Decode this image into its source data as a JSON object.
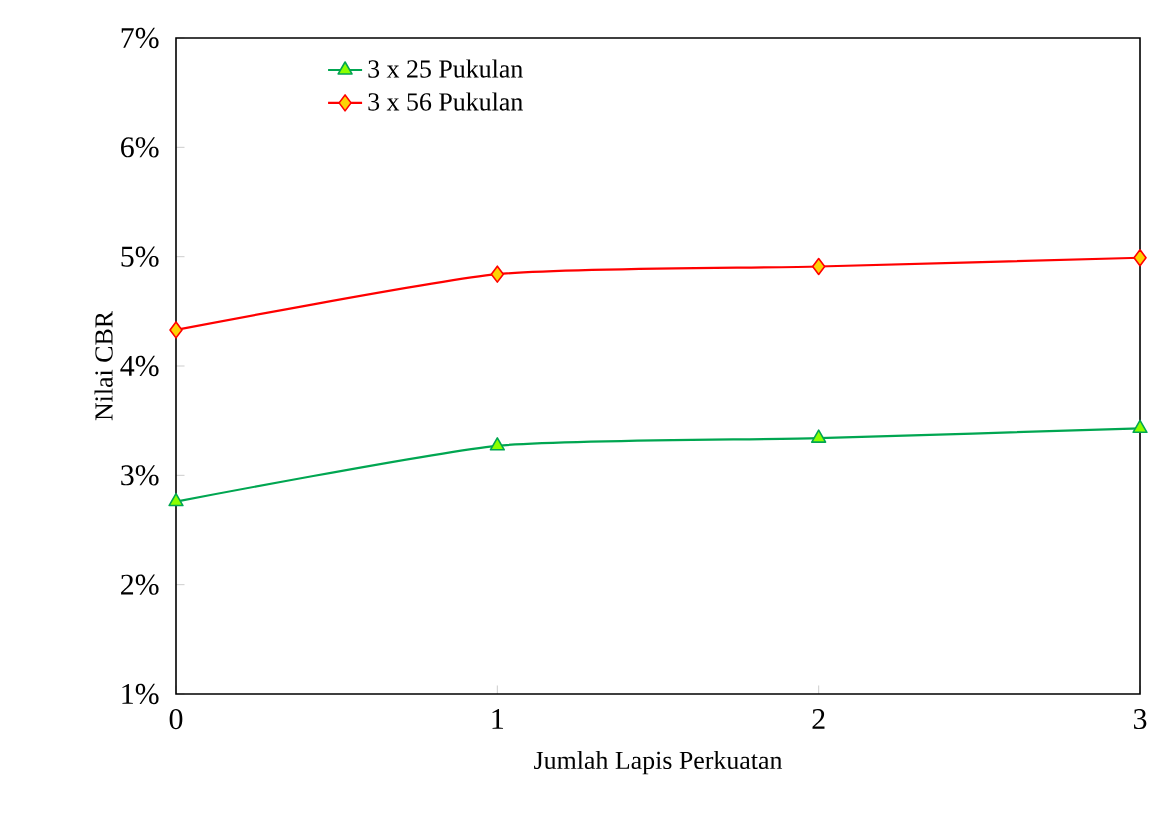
{
  "chart_data": {
    "type": "line",
    "xlabel": "Jumlah Lapis Perkuatan",
    "ylabel": "Nilai CBR",
    "x": [
      0,
      1,
      2,
      3
    ],
    "series": [
      {
        "name": "3 x 25 Pukulan",
        "color": "#00a651",
        "marker": "triangle",
        "values": [
          2.76,
          3.27,
          3.34,
          3.43
        ]
      },
      {
        "name": "3 x 56 Pukulan",
        "color": "#ff0000",
        "marker": "diamond",
        "values": [
          4.33,
          4.84,
          4.91,
          4.99
        ]
      }
    ],
    "xlim": [
      0,
      3
    ],
    "xticks": [
      0,
      1,
      2,
      3
    ],
    "ylim": [
      1,
      7
    ],
    "yticks": [
      {
        "value": 1,
        "label": "1%"
      },
      {
        "value": 2,
        "label": "2%"
      },
      {
        "value": 3,
        "label": "3%"
      },
      {
        "value": 4,
        "label": "4%"
      },
      {
        "value": 5,
        "label": "5%"
      },
      {
        "value": 6,
        "label": "6%"
      },
      {
        "value": 7,
        "label": "7%"
      }
    ],
    "grid": false,
    "legend": "top left",
    "line_style": "solid"
  }
}
